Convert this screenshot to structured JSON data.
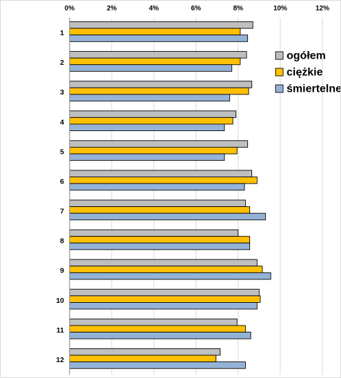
{
  "chart_data": {
    "type": "bar",
    "orientation": "horizontal",
    "categories": [
      "1",
      "2",
      "3",
      "4",
      "5",
      "6",
      "7",
      "8",
      "9",
      "10",
      "11",
      "12"
    ],
    "series": [
      {
        "name": "ogółem",
        "color": "#bfbfbf",
        "values": [
          8.7,
          8.4,
          8.65,
          7.9,
          8.45,
          8.65,
          8.35,
          8.0,
          8.9,
          9.0,
          7.95,
          7.15
        ]
      },
      {
        "name": "ciężkie",
        "color": "#ffc000",
        "values": [
          8.1,
          8.1,
          8.5,
          7.75,
          7.95,
          8.9,
          8.55,
          8.55,
          9.15,
          9.05,
          8.35,
          6.95
        ]
      },
      {
        "name": "śmiertelne",
        "color": "#95b3d7",
        "values": [
          8.45,
          7.7,
          7.6,
          7.35,
          7.35,
          8.3,
          9.3,
          8.55,
          9.55,
          8.9,
          8.6,
          8.35
        ]
      }
    ],
    "x_ticks": [
      "0%",
      "2%",
      "4%",
      "6%",
      "8%",
      "10%",
      "12%"
    ],
    "xlim": [
      0,
      12
    ],
    "value_unit": "%",
    "grid": "vertical",
    "legend_position": "right"
  }
}
